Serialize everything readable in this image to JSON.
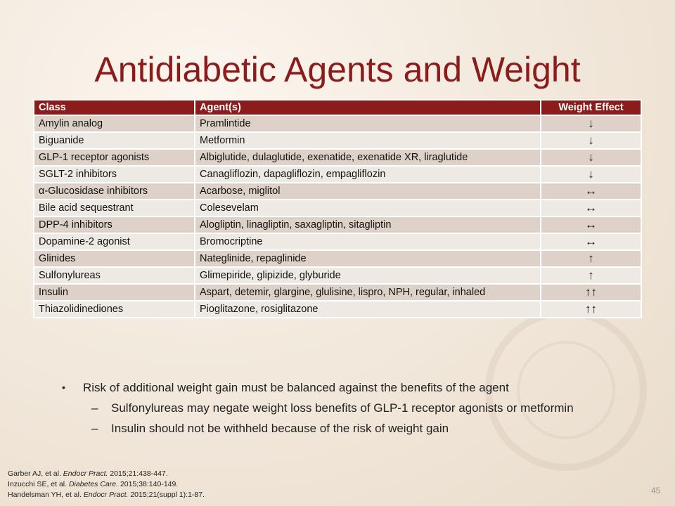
{
  "title": "Antidiabetic Agents and Weight",
  "table": {
    "headers": [
      "Class",
      "Agent(s)",
      "Weight Effect"
    ],
    "rows": [
      {
        "class": "Amylin analog",
        "agents": "Pramlintide",
        "effect": "↓"
      },
      {
        "class": "Biguanide",
        "agents": "Metformin",
        "effect": "↓"
      },
      {
        "class": "GLP-1 receptor agonists",
        "agents": "Albiglutide, dulaglutide, exenatide, exenatide XR, liraglutide",
        "effect": "↓"
      },
      {
        "class": "SGLT-2 inhibitors",
        "agents": "Canagliflozin, dapagliflozin, empagliflozin",
        "effect": "↓"
      },
      {
        "class": "α-Glucosidase inhibitors",
        "agents": "Acarbose, miglitol",
        "effect": "↔"
      },
      {
        "class": "Bile acid sequestrant",
        "agents": "Colesevelam",
        "effect": "↔"
      },
      {
        "class": "DPP-4 inhibitors",
        "agents": "Alogliptin, linagliptin, saxagliptin, sitagliptin",
        "effect": "↔"
      },
      {
        "class": "Dopamine-2 agonist",
        "agents": "Bromocriptine",
        "effect": "↔"
      },
      {
        "class": "Glinides",
        "agents": "Nateglinide, repaglinide",
        "effect": "↑"
      },
      {
        "class": "Sulfonylureas",
        "agents": "Glimepiride, glipizide, glyburide",
        "effect": "↑"
      },
      {
        "class": "Insulin",
        "agents": "Aspart, detemir, glargine, glulisine, lispro, NPH, regular, inhaled",
        "effect": "↑↑"
      },
      {
        "class": "Thiazolidinediones",
        "agents": "Pioglitazone, rosiglitazone",
        "effect": "↑↑"
      }
    ]
  },
  "bullets": {
    "main": "Risk of additional weight gain must be balanced against the benefits of the agent",
    "sub": [
      "Sulfonylureas may negate weight loss benefits of GLP-1 receptor agonists or metformin",
      "Insulin should not be withheld because of the risk of weight gain"
    ]
  },
  "references": [
    {
      "authors": "Garber AJ, et al.",
      "journal": "Endocr Pract.",
      "citation": "2015;21:438-447."
    },
    {
      "authors": "Inzucchi SE, et al.",
      "journal": "Diabetes Care.",
      "citation": "2015;38:140-149."
    },
    {
      "authors": "Handelsman YH, et al.",
      "journal": "Endocr Pract.",
      "citation": "2015;21(suppl 1):1-87."
    }
  ],
  "page_number": "45",
  "colors": {
    "accent": "#8c1c1c",
    "row_odd": "#ddd1c8",
    "row_even": "#efe9e3"
  }
}
